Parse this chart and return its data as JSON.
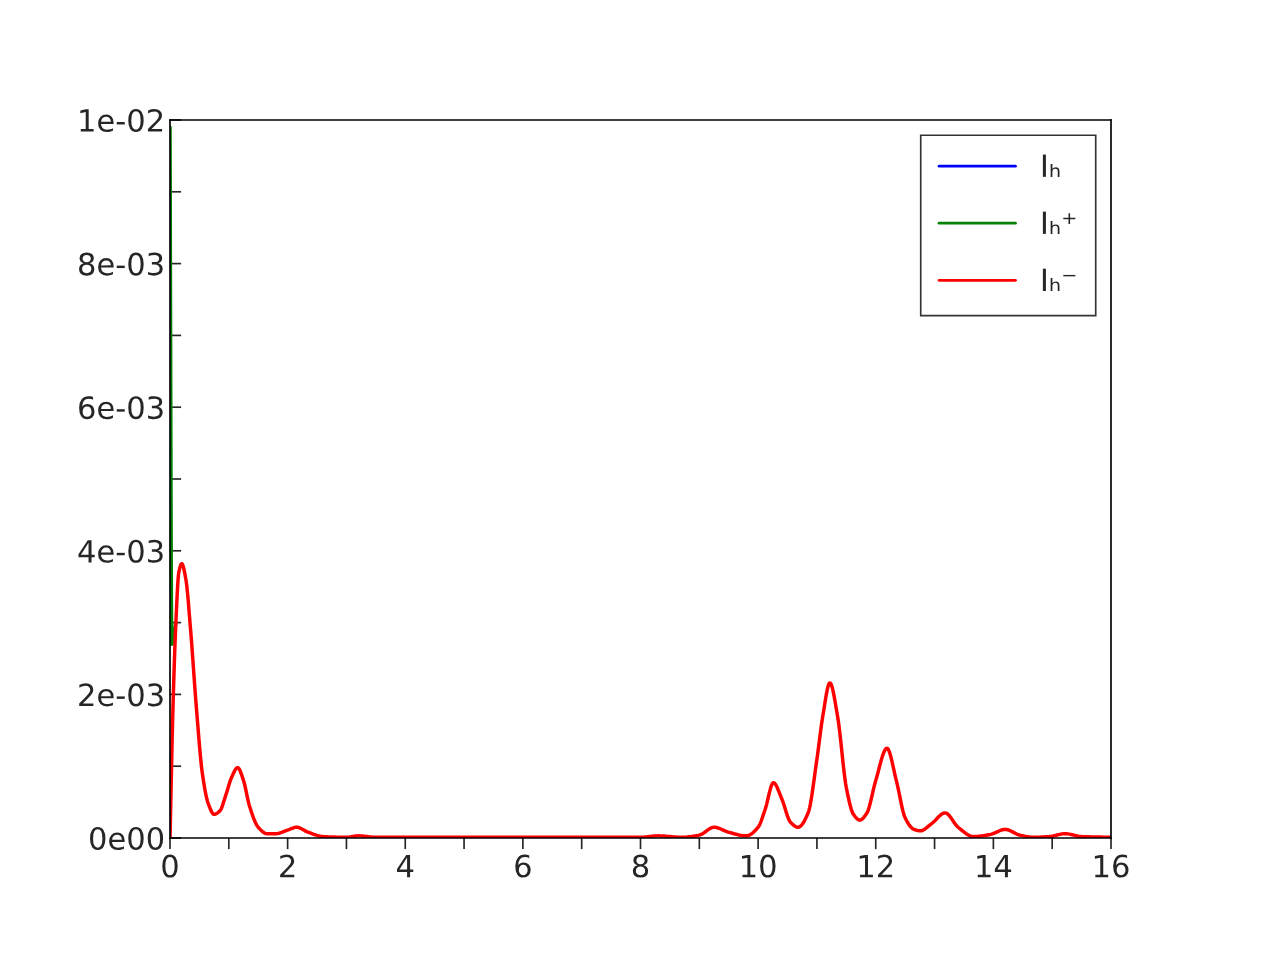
{
  "chart_data": {
    "type": "line",
    "xlim": [
      0,
      16
    ],
    "ylim": [
      0,
      0.01
    ],
    "xticks": [
      0,
      {
        "value": 1,
        "label": null
      },
      2,
      {
        "value": 3,
        "label": null
      },
      4,
      {
        "value": 5,
        "label": null
      },
      6,
      {
        "value": 7,
        "label": null
      },
      8,
      {
        "value": 9,
        "label": null
      },
      10,
      {
        "value": 11,
        "label": null
      },
      12,
      {
        "value": 13,
        "label": null
      },
      14,
      {
        "value": 15,
        "label": null
      },
      16
    ],
    "yticks": [
      {
        "value": 0,
        "label": "0e00"
      },
      {
        "value": 0.001,
        "label": null
      },
      {
        "value": 0.002,
        "label": "2e-03"
      },
      {
        "value": 0.003,
        "label": null
      },
      {
        "value": 0.004,
        "label": "4e-03"
      },
      {
        "value": 0.005,
        "label": null
      },
      {
        "value": 0.006,
        "label": "6e-03"
      },
      {
        "value": 0.007,
        "label": null
      },
      {
        "value": 0.008,
        "label": "8e-03"
      },
      {
        "value": 0.009,
        "label": null
      },
      {
        "value": 0.01,
        "label": "1e-02"
      }
    ],
    "grid": false,
    "legend": "top right",
    "series": [
      {
        "name": "Iₕ",
        "color": "#0000ff"
      },
      {
        "name": "Iₕ⁺",
        "color": "#008000",
        "x": [
          0,
          0.03,
          0.1
        ],
        "values": [
          0.0099,
          0.0027,
          0.003
        ]
      },
      {
        "name": "Iₕ⁻",
        "color": "#ff0000",
        "x": [
          0,
          0.05,
          0.1,
          0.15,
          0.2,
          0.27,
          0.35,
          0.45,
          0.55,
          0.65,
          0.75,
          0.85,
          0.95,
          1.05,
          1.15,
          1.25,
          1.35,
          1.5,
          1.65,
          1.8,
          2.0,
          2.15,
          2.35,
          2.6,
          3.0,
          3.2,
          3.5,
          4.2,
          5.2,
          6.2,
          7.2,
          8.0,
          8.3,
          8.7,
          9.0,
          9.25,
          9.5,
          9.8,
          10.0,
          10.12,
          10.26,
          10.4,
          10.55,
          10.68,
          10.85,
          11.0,
          11.1,
          11.22,
          11.35,
          11.5,
          11.62,
          11.73,
          11.85,
          12.0,
          12.19,
          12.35,
          12.5,
          12.65,
          12.76,
          12.95,
          13.18,
          13.4,
          13.66,
          13.95,
          14.2,
          14.45,
          14.68,
          14.95,
          15.22,
          15.5,
          16
        ],
        "values": [
          0,
          0.0018,
          0.003,
          0.0037,
          0.00382,
          0.0036,
          0.0029,
          0.0018,
          0.0009,
          0.00048,
          0.00033,
          0.00038,
          0.0006,
          0.00085,
          0.00098,
          0.0008,
          0.00045,
          0.00015,
          6e-05,
          6e-05,
          0.00011,
          0.00015,
          8e-05,
          2e-05,
          1e-05,
          3e-05,
          1e-05,
          1e-05,
          1e-05,
          1e-05,
          1e-05,
          1e-05,
          3e-05,
          1e-05,
          4e-05,
          0.00015,
          8e-05,
          3e-05,
          0.00015,
          0.0004,
          0.00077,
          0.00055,
          0.00022,
          0.00015,
          0.00035,
          0.0011,
          0.0017,
          0.00216,
          0.0017,
          0.0007,
          0.00033,
          0.00025,
          0.00035,
          0.0008,
          0.00125,
          0.0008,
          0.00028,
          0.00012,
          0.0001,
          0.0002,
          0.00035,
          0.00015,
          2e-05,
          5e-05,
          0.00012,
          4e-05,
          1e-05,
          2e-05,
          6e-05,
          2e-05,
          1e-05
        ]
      }
    ]
  }
}
